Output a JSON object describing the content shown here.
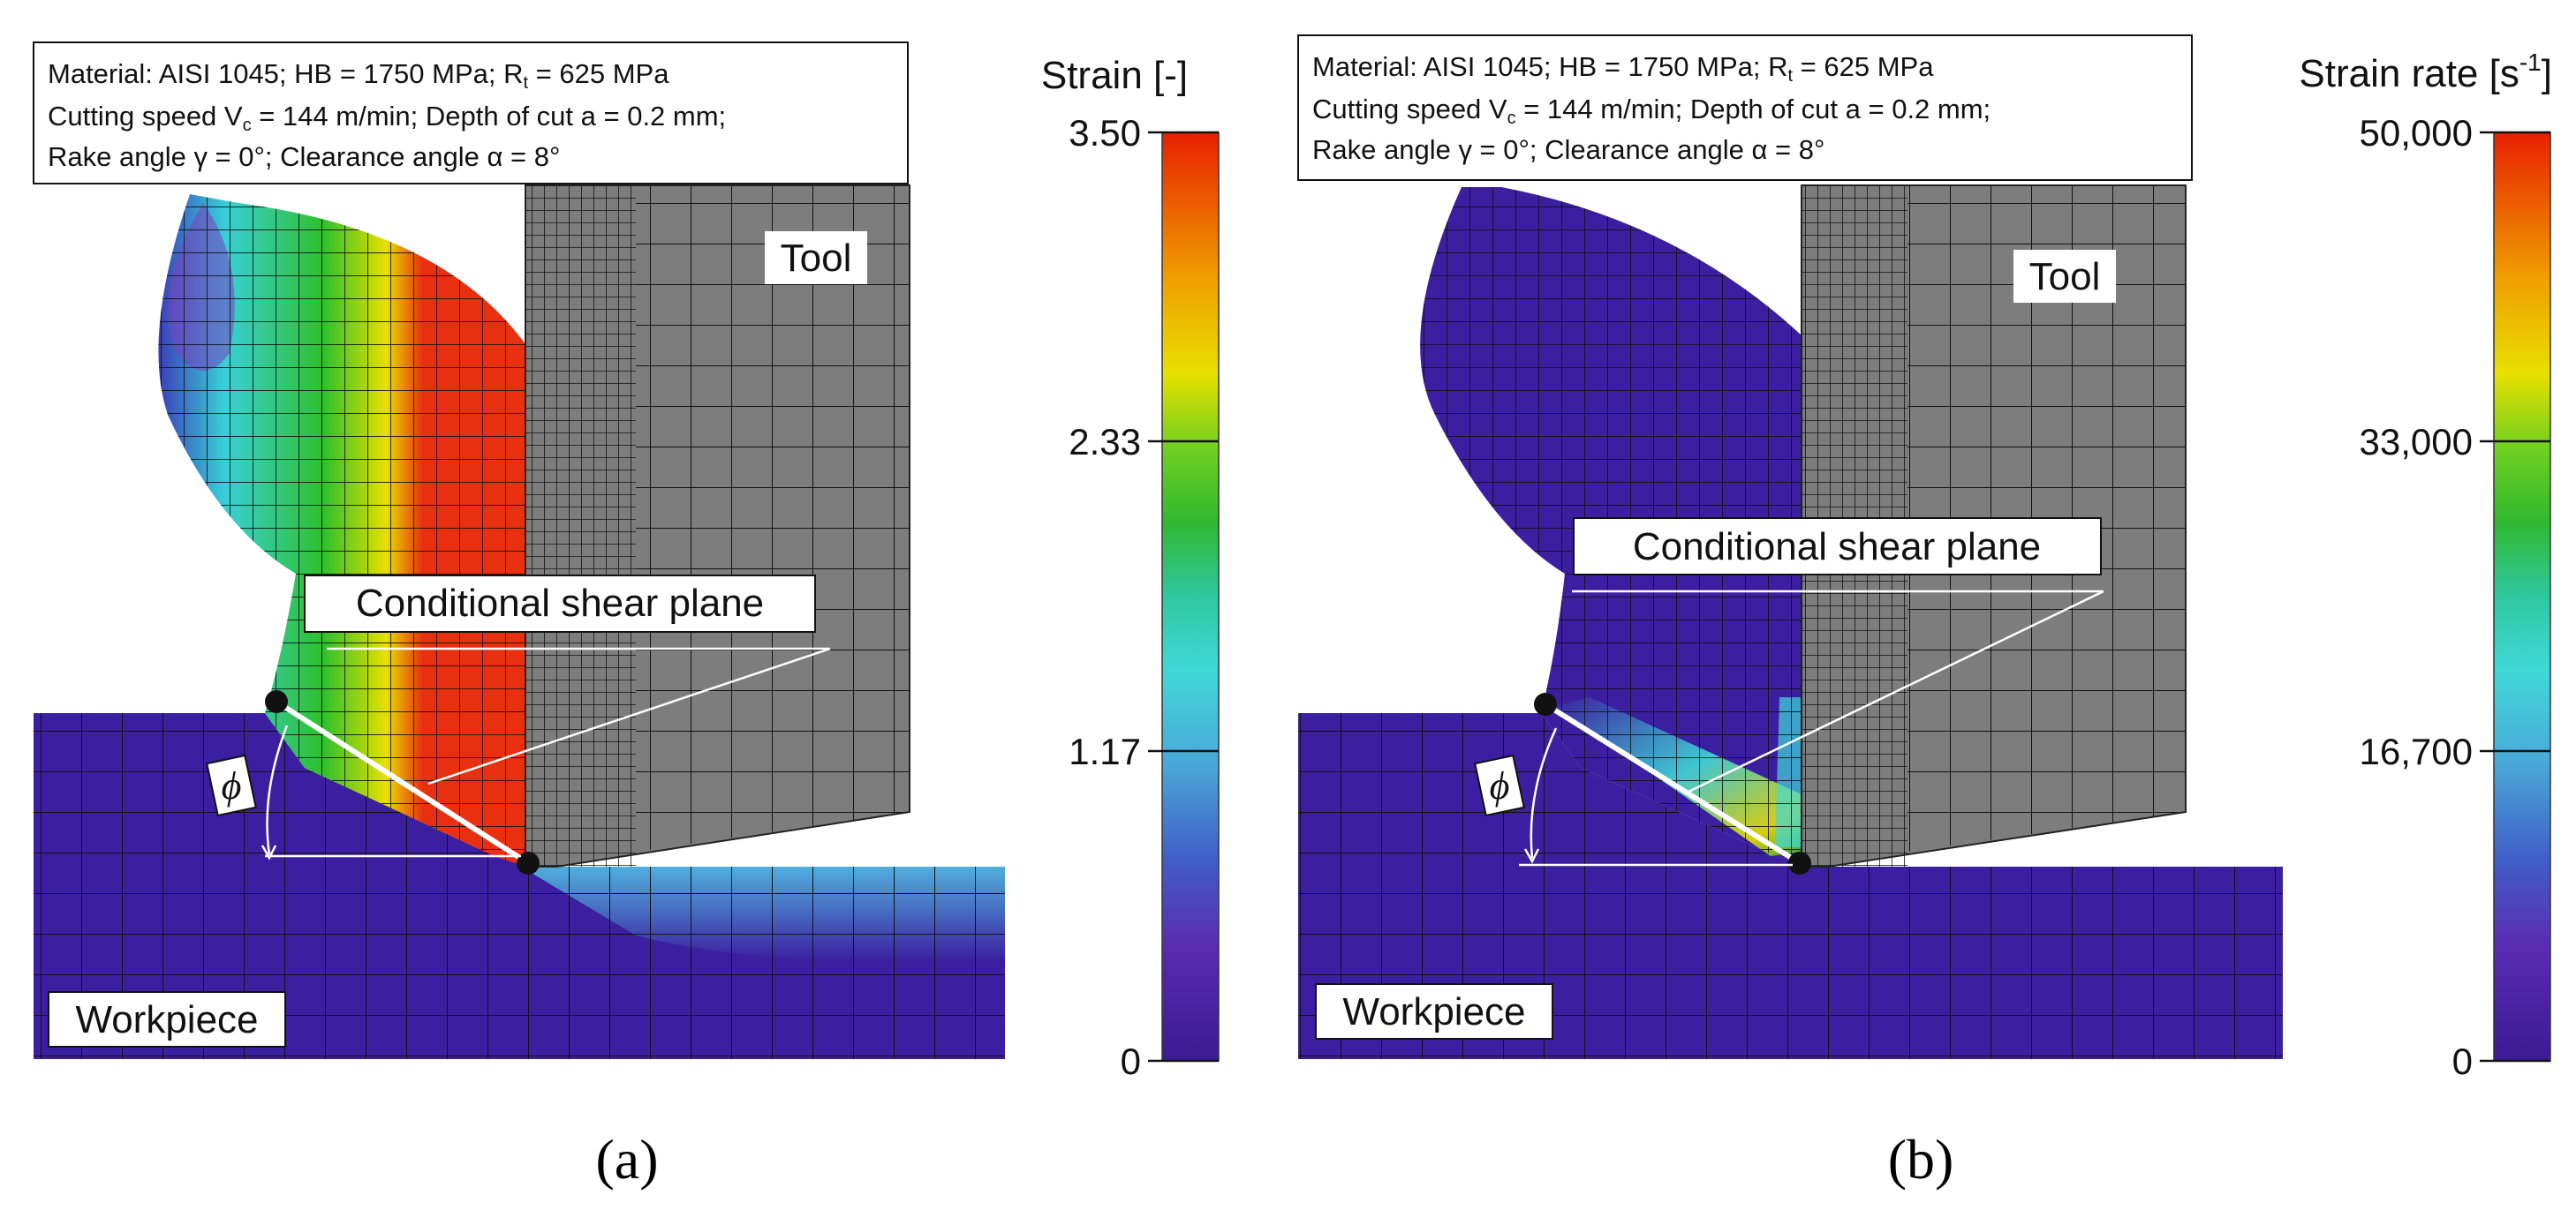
{
  "panels": [
    {
      "id": "a",
      "letter": "(a)",
      "info": {
        "line1": "Material: AISI 1045; HB = 1750 MPa; R",
        "line1_sub": "t",
        "line1_end": " = 625 MPa",
        "line2": "Cutting speed V",
        "line2_sub": "c",
        "line2_end": " = 144 m/min; Depth of cut a = 0.2 mm;",
        "line3": "Rake angle γ = 0°; Clearance angle α = 8°"
      },
      "labels": {
        "tool": "Tool",
        "shear_plane": "Conditional shear plane",
        "workpiece": "Workpiece",
        "angle": "ϕ"
      },
      "colorbar": {
        "title": "Strain [-]",
        "ticks": [
          "3.50",
          "2.33",
          "1.17",
          "0"
        ]
      }
    },
    {
      "id": "b",
      "letter": "(b)",
      "info": {
        "line1": "Material: AISI 1045; HB = 1750 MPa; R",
        "line1_sub": "t",
        "line1_end": " = 625 MPa",
        "line2": "Cutting speed V",
        "line2_sub": "c",
        "line2_end": " = 144 m/min; Depth of cut a = 0.2 mm;",
        "line3": "Rake angle γ = 0°; Clearance angle α = 8°"
      },
      "labels": {
        "tool": "Tool",
        "shear_plane": "Conditional shear plane",
        "workpiece": "Workpiece",
        "angle": "ϕ"
      },
      "colorbar": {
        "title": "Strain rate [s",
        "title_sup": "-1",
        "title_end": "]",
        "ticks": [
          "50,000",
          "33,000",
          "16,700",
          "0"
        ]
      }
    }
  ],
  "colors": {
    "workpiece": "#3b1fa0",
    "tool": "#7d7d7d",
    "strain_high": "#e83010",
    "strain_mid": "#2fc02a",
    "strain_low": "#38d0d8"
  }
}
